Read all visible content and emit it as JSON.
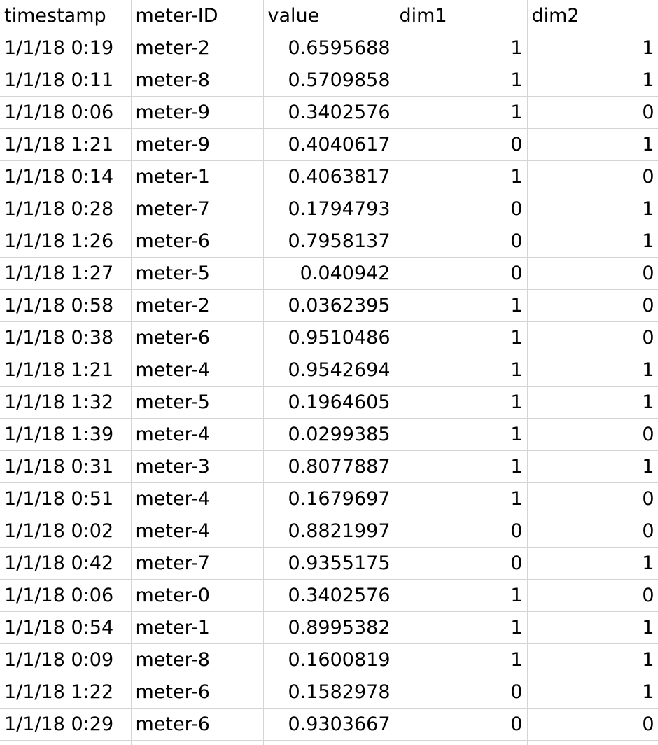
{
  "sheet": {
    "columns": [
      "timestamp",
      "meter-ID",
      "value",
      "dim1",
      "dim2"
    ],
    "rows": [
      [
        "1/1/18 0:19",
        "meter-2",
        "0.6595688",
        "1",
        "1"
      ],
      [
        "1/1/18 0:11",
        "meter-8",
        "0.5709858",
        "1",
        "1"
      ],
      [
        "1/1/18 0:06",
        "meter-9",
        "0.3402576",
        "1",
        "0"
      ],
      [
        "1/1/18 1:21",
        "meter-9",
        "0.4040617",
        "0",
        "1"
      ],
      [
        "1/1/18 0:14",
        "meter-1",
        "0.4063817",
        "1",
        "0"
      ],
      [
        "1/1/18 0:28",
        "meter-7",
        "0.1794793",
        "0",
        "1"
      ],
      [
        "1/1/18 1:26",
        "meter-6",
        "0.7958137",
        "0",
        "1"
      ],
      [
        "1/1/18 1:27",
        "meter-5",
        "0.040942",
        "0",
        "0"
      ],
      [
        "1/1/18 0:58",
        "meter-2",
        "0.0362395",
        "1",
        "0"
      ],
      [
        "1/1/18 0:38",
        "meter-6",
        "0.9510486",
        "1",
        "0"
      ],
      [
        "1/1/18 1:21",
        "meter-4",
        "0.9542694",
        "1",
        "1"
      ],
      [
        "1/1/18 1:32",
        "meter-5",
        "0.1964605",
        "1",
        "1"
      ],
      [
        "1/1/18 1:39",
        "meter-4",
        "0.0299385",
        "1",
        "0"
      ],
      [
        "1/1/18 0:31",
        "meter-3",
        "0.8077887",
        "1",
        "1"
      ],
      [
        "1/1/18 0:51",
        "meter-4",
        "0.1679697",
        "1",
        "0"
      ],
      [
        "1/1/18 0:02",
        "meter-4",
        "0.8821997",
        "0",
        "0"
      ],
      [
        "1/1/18 0:42",
        "meter-7",
        "0.9355175",
        "0",
        "1"
      ],
      [
        "1/1/18 0:06",
        "meter-0",
        "0.3402576",
        "1",
        "0"
      ],
      [
        "1/1/18 0:54",
        "meter-1",
        "0.8995382",
        "1",
        "1"
      ],
      [
        "1/1/18 0:09",
        "meter-8",
        "0.1600819",
        "1",
        "1"
      ],
      [
        "1/1/18 1:22",
        "meter-6",
        "0.1582978",
        "0",
        "1"
      ],
      [
        "1/1/18 0:29",
        "meter-6",
        "0.9303667",
        "0",
        "0"
      ]
    ]
  }
}
